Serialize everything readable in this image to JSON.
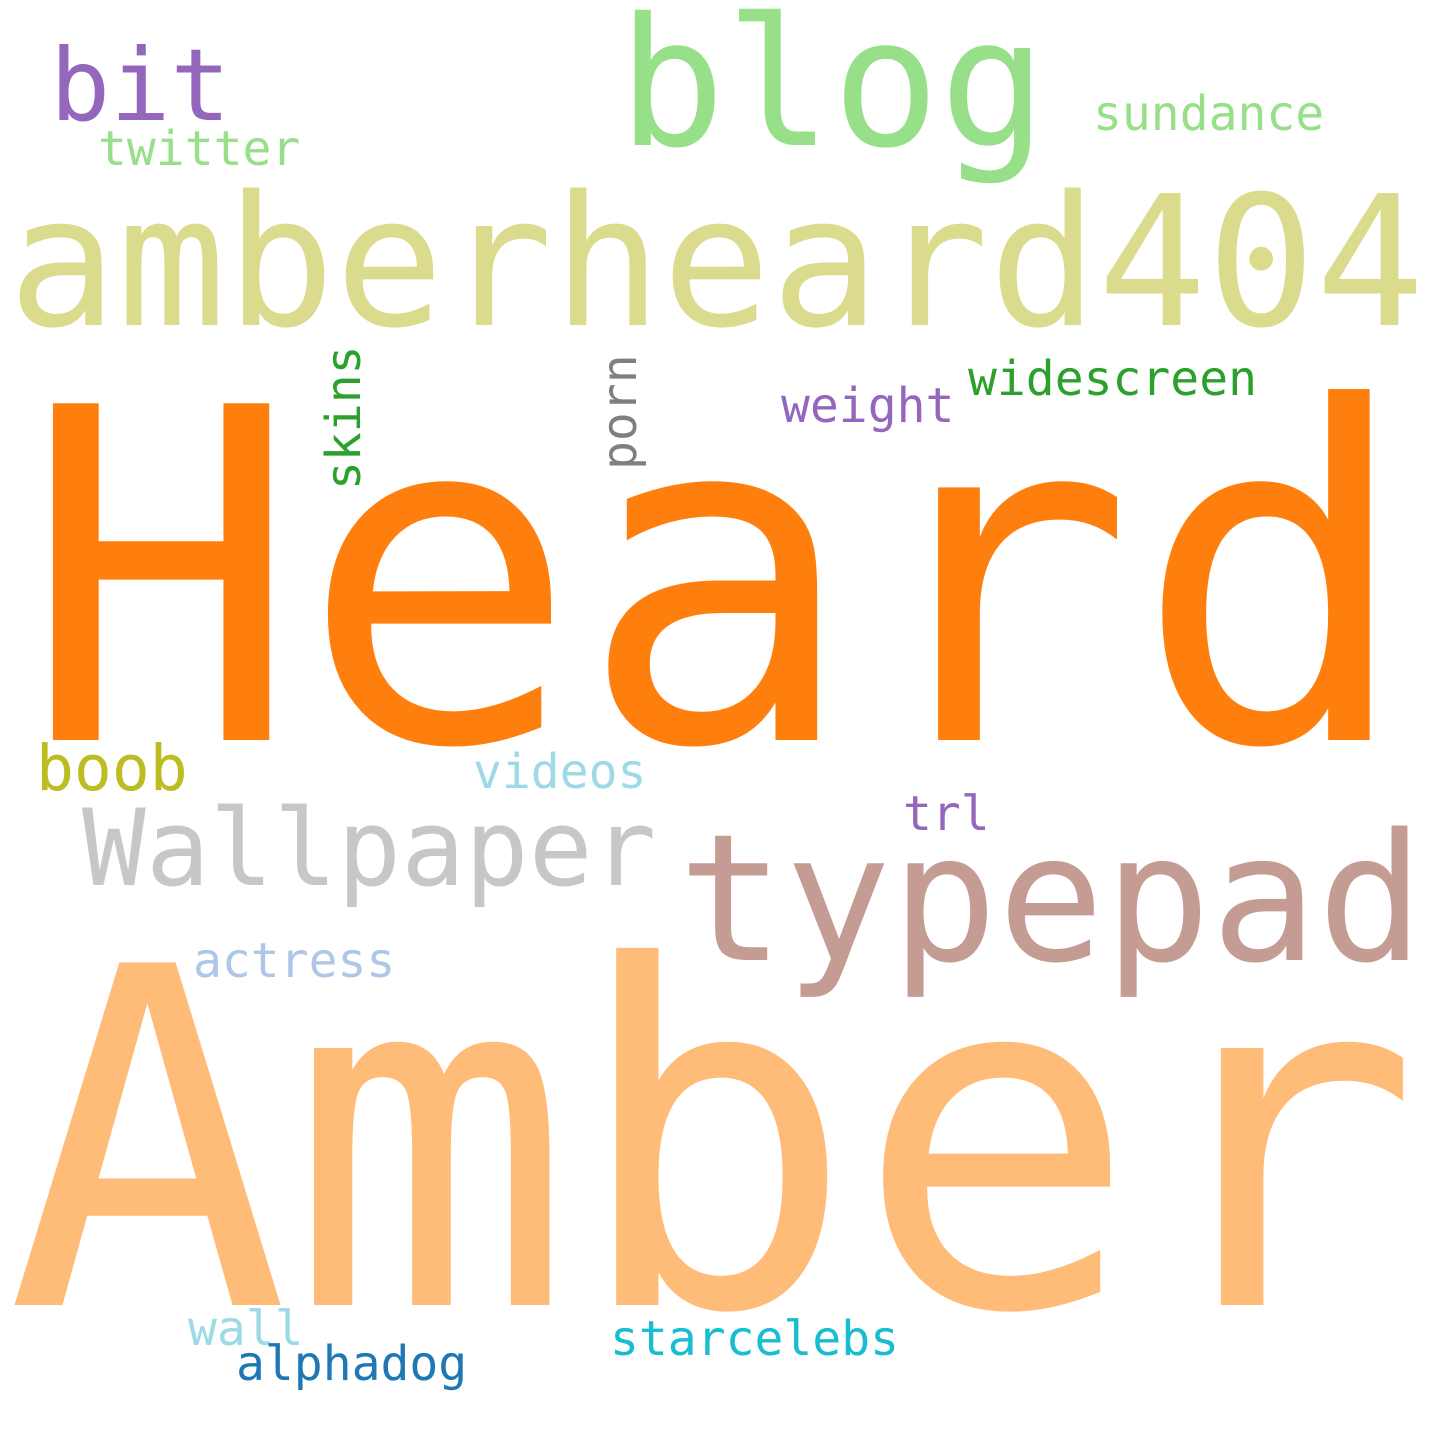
{
  "words": [
    {
      "text": "Heard",
      "color": "#ff7f0e"
    },
    {
      "text": "Amber",
      "color": "#ffbb78"
    },
    {
      "text": "amberheard404",
      "color": "#dbdb8d"
    },
    {
      "text": "blog",
      "color": "#98df8a"
    },
    {
      "text": "typepad",
      "color": "#c49c94"
    },
    {
      "text": "Wallpaper",
      "color": "#c7c7c7"
    },
    {
      "text": "bit",
      "color": "#9467bd"
    },
    {
      "text": "boob",
      "color": "#bcbd22"
    },
    {
      "text": "twitter",
      "color": "#98df8a"
    },
    {
      "text": "sundance",
      "color": "#98df8a"
    },
    {
      "text": "skins",
      "color": "#2ca02c"
    },
    {
      "text": "porn",
      "color": "#7f7f7f"
    },
    {
      "text": "widescreen",
      "color": "#2ca02c"
    },
    {
      "text": "weight",
      "color": "#9467bd"
    },
    {
      "text": "videos",
      "color": "#9edae5"
    },
    {
      "text": "trl",
      "color": "#9467bd"
    },
    {
      "text": "actress",
      "color": "#aec7e8"
    },
    {
      "text": "wall",
      "color": "#9edae5"
    },
    {
      "text": "alphadog",
      "color": "#1f77b4"
    },
    {
      "text": "starcelebs",
      "color": "#17becf"
    }
  ]
}
